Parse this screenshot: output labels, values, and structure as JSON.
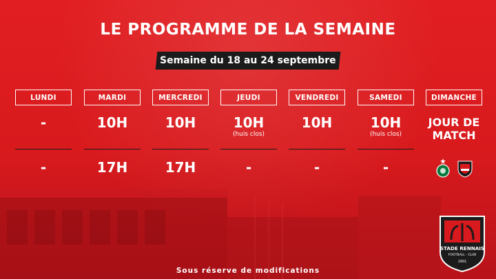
{
  "title": "LE PROGRAMME DE LA SEMAINE",
  "week": "Semaine du 18 au 24 septembre",
  "days": [
    {
      "label": "LUNDI",
      "am": "-",
      "am_note": "",
      "pm": "-"
    },
    {
      "label": "MARDI",
      "am": "10H",
      "am_note": "",
      "pm": "17H"
    },
    {
      "label": "MERCREDI",
      "am": "10H",
      "am_note": "",
      "pm": "17H"
    },
    {
      "label": "JEUDI",
      "am": "10H",
      "am_note": "(huis clos)",
      "pm": "-"
    },
    {
      "label": "VENDREDI",
      "am": "10H",
      "am_note": "",
      "pm": "-"
    },
    {
      "label": "SAMEDI",
      "am": "10H",
      "am_note": "(huis clos)",
      "pm": "-"
    },
    {
      "label": "DIMANCHE",
      "am": "JOUR DE MATCH",
      "am_note": "",
      "pm": ""
    }
  ],
  "footer": "Sous réserve de modifications",
  "crest": {
    "name": "STADE RENNAIS",
    "subtitle": "FOOTBALL · CLUB",
    "year": "1901"
  },
  "colors": {
    "background": "#d8191d",
    "dark": "#1b1b1b",
    "saint_etienne": "#0b7a3e"
  }
}
